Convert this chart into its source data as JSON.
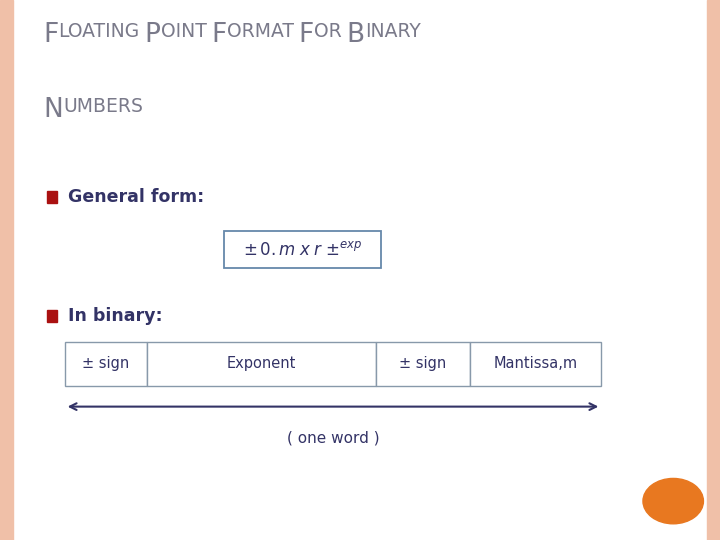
{
  "title_line1": "FLOATING POINT FORMAT FOR BINARY",
  "title_line2": "NUMBERS",
  "title_color": "#7a7a8a",
  "background_color": "#ffffff",
  "border_color": "#f0c0a8",
  "bullet_color": "#aa1111",
  "bullet1_text": "General form:",
  "bullet2_text": "In binary:",
  "formula_box_border": "#6688aa",
  "table_cells": [
    "± sign",
    "Exponent",
    "± sign",
    "Mantissa,m"
  ],
  "table_border_color": "#8899aa",
  "arrow_label": "( one word )",
  "text_color": "#333366",
  "bullet_text_color": "#333366",
  "orange_circle_color": "#e87820",
  "figsize": [
    7.2,
    5.4
  ],
  "dpi": 100
}
